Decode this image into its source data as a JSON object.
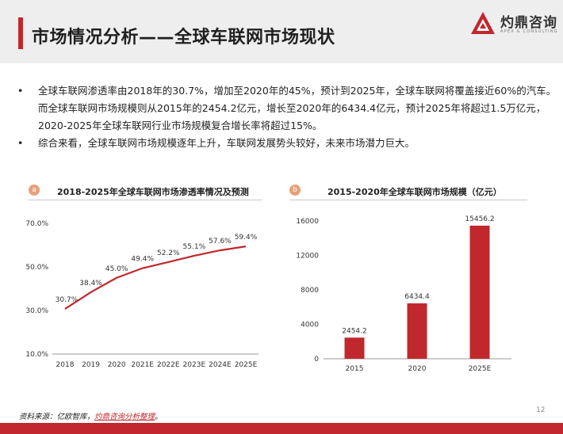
{
  "header": {
    "title": "市场情况分析——全球车联网市场现状",
    "logo_name": "灼鼎咨询",
    "logo_sub": "APEX & CONSULTING"
  },
  "bullets": [
    {
      "lines": [
        "全球车联网渗透率由2018年的30.7%，增加至2020年的45%，预计到2025年，全球车联网将覆盖接近60%的汽车。",
        "而全球车联网市场规模则从2015年的2454.2亿元，增长至2020年的6434.4亿元，预计2025年将超过1.5万亿元，",
        "2020-2025年全球车联网行业市场规模复合增长率将超过15%。"
      ]
    },
    {
      "lines": [
        "综合来看，全球车联网市场规模逐年上升，车联网发展势头较好，未来市场潜力巨大。"
      ]
    }
  ],
  "bullet_symbol": "•",
  "panels": {
    "a": {
      "badge": "a",
      "title": "2018-2025年全球车联网市场渗透率情况及预测"
    },
    "b": {
      "badge": "b",
      "title": "2015-2020年全球车联网市场规模（亿元）"
    }
  },
  "chart_data": [
    {
      "type": "line",
      "title": "2018-2025年全球车联网市场渗透率情况及预测",
      "categories": [
        "2018",
        "2019",
        "2020",
        "2021E",
        "2022E",
        "2023E",
        "2024E",
        "2025E"
      ],
      "values": [
        30.7,
        38.4,
        45.0,
        49.4,
        52.2,
        55.1,
        57.6,
        59.4
      ],
      "data_labels": [
        "30.7%",
        "38.4%",
        "45.0%",
        "49.4%",
        "52.2%",
        "55.1%",
        "57.6%",
        "59.4%"
      ],
      "yticks": [
        10,
        30,
        50,
        70
      ],
      "ytick_labels": [
        "10.0%",
        "30.0%",
        "50.0%",
        "70.0%"
      ],
      "ylim": [
        10,
        70
      ],
      "color": "#c0282d",
      "grid": false,
      "legend": "none"
    },
    {
      "type": "bar",
      "title": "2015-2020年全球车联网市场规模（亿元）",
      "categories": [
        "2015",
        "2020",
        "2025E"
      ],
      "values": [
        2454.2,
        6434.4,
        15456.2
      ],
      "data_labels": [
        "2454.2",
        "6434.4",
        "15456.2"
      ],
      "yticks": [
        0,
        4000,
        8000,
        12000,
        16000
      ],
      "ytick_labels": [
        "0",
        "4000",
        "8000",
        "12000",
        "16000"
      ],
      "ylim": [
        0,
        16000
      ],
      "color": "#c0282d",
      "grid": false,
      "legend": "none"
    }
  ],
  "footer": {
    "source_prefix": "资料来源：亿欧智库，",
    "source_link": "灼鼎咨询分析整理",
    "source_suffix": "。",
    "page_number": "12"
  }
}
